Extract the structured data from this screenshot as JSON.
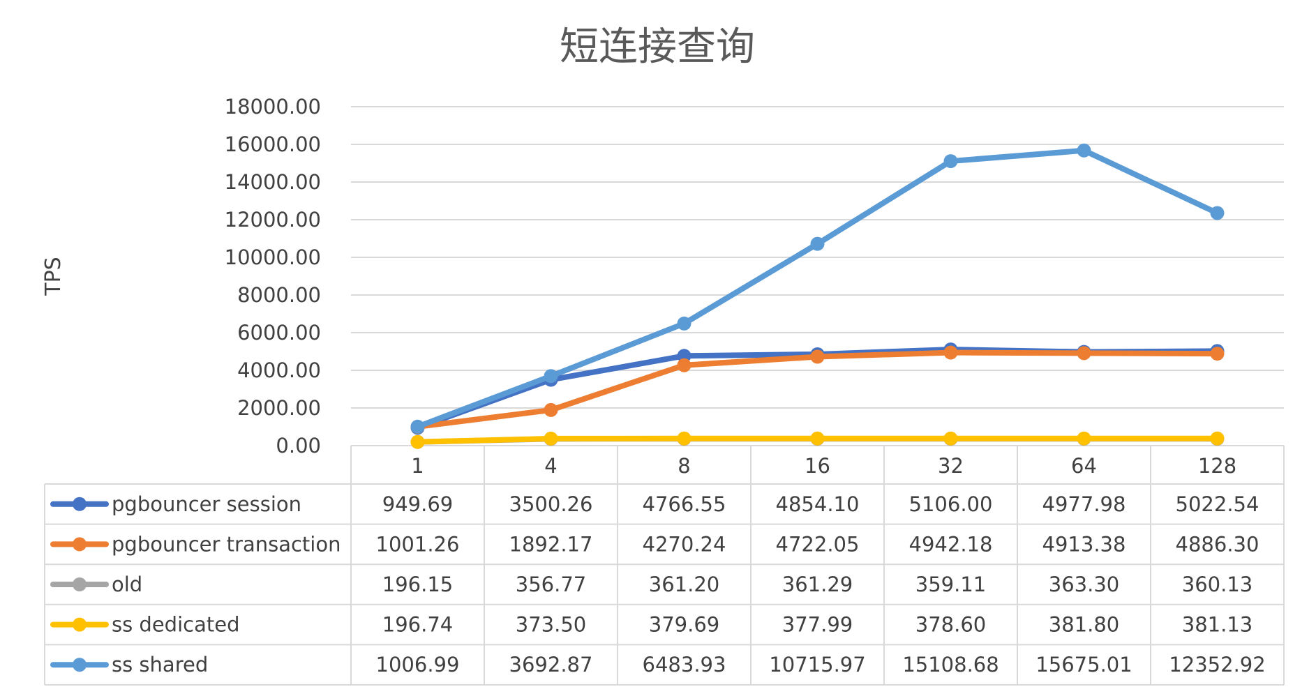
{
  "chart_data": {
    "type": "line",
    "title": "短连接查询",
    "xlabel": "",
    "ylabel": "TPS",
    "ylim": [
      0,
      18000
    ],
    "y_ticks": [
      "0.00",
      "2000.00",
      "4000.00",
      "6000.00",
      "8000.00",
      "10000.00",
      "12000.00",
      "14000.00",
      "16000.00",
      "18000.00"
    ],
    "grid": true,
    "legend": "data-table",
    "categories": [
      "1",
      "4",
      "8",
      "16",
      "32",
      "64",
      "128"
    ],
    "series": [
      {
        "name": "pgbouncer session",
        "color": "#4472C4",
        "values": [
          949.69,
          3500.26,
          4766.55,
          4854.1,
          5106.0,
          4977.98,
          5022.54
        ],
        "labels": [
          "949.69",
          "3500.26",
          "4766.55",
          "4854.10",
          "5106.00",
          "4977.98",
          "5022.54"
        ]
      },
      {
        "name": "pgbouncer transaction",
        "color": "#ED7D31",
        "values": [
          1001.26,
          1892.17,
          4270.24,
          4722.05,
          4942.18,
          4913.38,
          4886.3
        ],
        "labels": [
          "1001.26",
          "1892.17",
          "4270.24",
          "4722.05",
          "4942.18",
          "4913.38",
          "4886.30"
        ]
      },
      {
        "name": "old",
        "color": "#A5A5A5",
        "values": [
          196.15,
          356.77,
          361.2,
          361.29,
          359.11,
          363.3,
          360.13
        ],
        "labels": [
          "196.15",
          "356.77",
          "361.20",
          "361.29",
          "359.11",
          "363.30",
          "360.13"
        ]
      },
      {
        "name": "ss dedicated",
        "color": "#FFC000",
        "values": [
          196.74,
          373.5,
          379.69,
          377.99,
          378.6,
          381.8,
          381.13
        ],
        "labels": [
          "196.74",
          "373.50",
          "379.69",
          "377.99",
          "378.60",
          "381.80",
          "381.13"
        ]
      },
      {
        "name": "ss shared",
        "color": "#5B9BD5",
        "values": [
          1006.99,
          3692.87,
          6483.93,
          10715.97,
          15108.68,
          15675.01,
          12352.92
        ],
        "labels": [
          "1006.99",
          "3692.87",
          "6483.93",
          "10715.97",
          "15108.68",
          "15675.01",
          "12352.92"
        ]
      }
    ]
  }
}
